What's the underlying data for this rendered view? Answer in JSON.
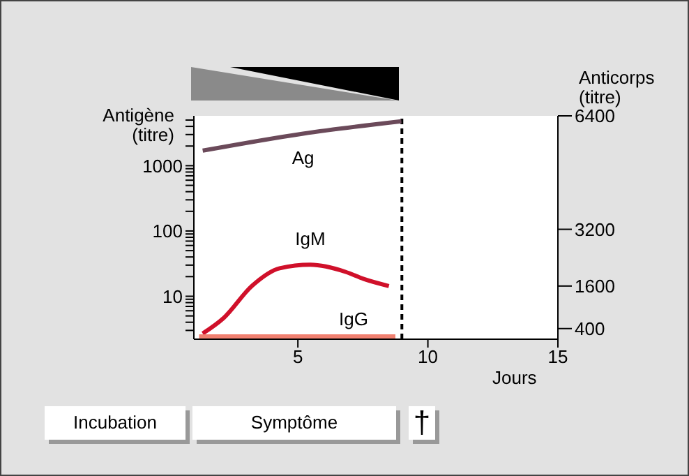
{
  "chart_data": {
    "type": "line",
    "xlabel": "Jours",
    "ylabel": "Antigène (titre)",
    "y2label": "Anticorps (titre)",
    "xlim": [
      1,
      15
    ],
    "xticks": [
      5,
      10,
      15
    ],
    "ylim": [
      2.2,
      5800
    ],
    "log": "y",
    "yticks": [
      {
        "value": 3,
        "label": null
      },
      {
        "value": 4,
        "label": null
      },
      {
        "value": 5,
        "label": null
      },
      {
        "value": 6,
        "label": null
      },
      {
        "value": 7,
        "label": null
      },
      {
        "value": 8,
        "label": null
      },
      {
        "value": 9,
        "label": null
      },
      10,
      {
        "value": 20,
        "label": null
      },
      {
        "value": 30,
        "label": null
      },
      {
        "value": 40,
        "label": null
      },
      {
        "value": 50,
        "label": null
      },
      {
        "value": 60,
        "label": null
      },
      {
        "value": 70,
        "label": null
      },
      {
        "value": 80,
        "label": null
      },
      {
        "value": 90,
        "label": null
      },
      100,
      {
        "value": 200,
        "label": null
      },
      {
        "value": 300,
        "label": null
      },
      {
        "value": 400,
        "label": null
      },
      {
        "value": 500,
        "label": null
      },
      {
        "value": 600,
        "label": null
      },
      {
        "value": 700,
        "label": null
      },
      {
        "value": 800,
        "label": null
      },
      {
        "value": 900,
        "label": null
      },
      1000,
      {
        "value": 2000,
        "label": null
      },
      {
        "value": 3000,
        "label": null
      },
      {
        "value": 4000,
        "label": null
      },
      {
        "value": 5000,
        "label": null
      }
    ],
    "y2lim": [
      100,
      6400
    ],
    "y2ticks": [
      400,
      1600,
      3200,
      6400
    ],
    "series": [
      {
        "name": "Ag",
        "color": "#6b4a5a",
        "x": [
          1.34,
          5.2,
          8.98
        ],
        "values": [
          1700,
          3100,
          4800
        ]
      },
      {
        "name": "IgM",
        "color": "#d0102a",
        "axis": "y2",
        "x": [
          1.34,
          2.15,
          3.23,
          4.3,
          5.48,
          6.83,
          7.53,
          8.5
        ],
        "values": [
          260,
          700,
          1600,
          2100,
          2200,
          2000,
          1800,
          1600
        ]
      },
      {
        "name": "IgG",
        "color": "#f08070",
        "axis": "y2",
        "x": [
          1.2,
          8.75
        ],
        "values": [
          180,
          180
        ]
      }
    ],
    "ref_lines": [
      {
        "axis": "x",
        "value": 9,
        "color": "#000000",
        "line_style": "dashed"
      }
    ],
    "annotations": [
      "Incubation",
      "Symptôme",
      "†"
    ],
    "marker": "none",
    "line_style": "solid"
  }
}
